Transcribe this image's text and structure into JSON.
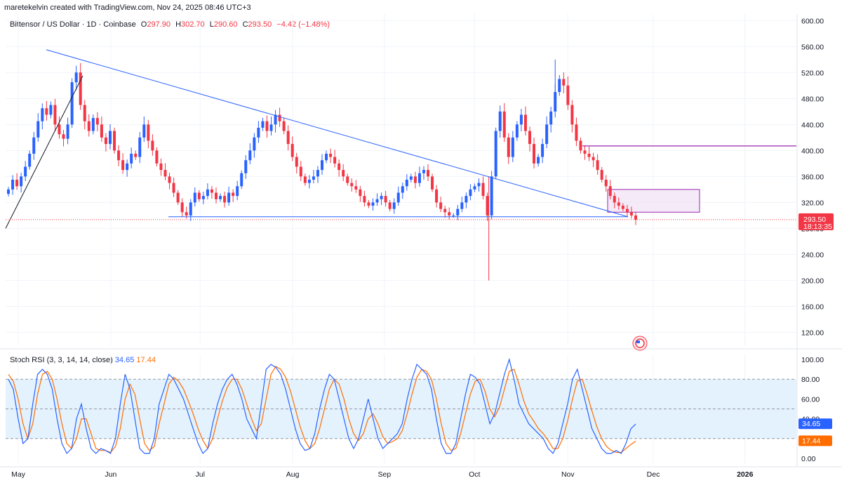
{
  "header": {
    "attribution": "maretekelvin created with TradingView.com, Nov 24, 2025 08:46 UTC+3"
  },
  "legend": {
    "symbol": "Bittensor / US Dollar · 1D · Coinbase",
    "open_label": "O",
    "open": "297.90",
    "high_label": "H",
    "high": "302.70",
    "low_label": "L",
    "low": "290.60",
    "close_label": "C",
    "close": "293.50",
    "change": "−4.42 (−1.48%)"
  },
  "price_badge": {
    "price": "293.50",
    "countdown": "18:13:35"
  },
  "rsi_legend": {
    "title": "Stoch RSI (3, 3, 14, 14, close)",
    "k_value": "34.65",
    "d_value": "17.44"
  },
  "colors": {
    "up": "#2962ff",
    "down": "#f23645",
    "trendline": "#2962ff",
    "resistance": "#9c27b0",
    "zone_fill": "#f3e5f5",
    "rsi_k": "#2962ff",
    "rsi_d": "#ff6d00",
    "rsi_band": "#e3f2fd"
  },
  "chart_data": [
    {
      "type": "candlestick",
      "title": "Bittensor / US Dollar · 1D · Coinbase",
      "y_axis_side": "right",
      "ylim": [
        100,
        610
      ],
      "y_ticks": [
        120,
        160,
        200,
        240,
        280,
        320,
        360,
        400,
        440,
        480,
        520,
        560,
        600
      ],
      "y_tick_labels": [
        "120.00",
        "160.00",
        "200.00",
        "240.00",
        "280.00",
        "320.00",
        "360.00",
        "400.00",
        "440.00",
        "480.00",
        "520.00",
        "560.00",
        "600.00"
      ],
      "x_ticks": [
        "May",
        "Jun",
        "Jul",
        "Aug",
        "Sep",
        "Oct",
        "Nov",
        "Dec",
        "2026"
      ],
      "close_series": [
        340,
        355,
        345,
        360,
        375,
        395,
        420,
        445,
        465,
        455,
        470,
        440,
        425,
        418,
        440,
        505,
        520,
        470,
        445,
        430,
        450,
        440,
        420,
        410,
        430,
        400,
        385,
        370,
        380,
        395,
        390,
        420,
        440,
        415,
        400,
        380,
        370,
        360,
        350,
        335,
        320,
        305,
        300,
        320,
        335,
        325,
        330,
        340,
        335,
        325,
        330,
        320,
        335,
        330,
        345,
        365,
        385,
        400,
        420,
        435,
        445,
        430,
        440,
        455,
        445,
        430,
        410,
        390,
        375,
        360,
        350,
        355,
        360,
        370,
        385,
        395,
        390,
        380,
        370,
        360,
        350,
        345,
        340,
        330,
        320,
        315,
        320,
        325,
        330,
        320,
        310,
        320,
        335,
        345,
        355,
        360,
        350,
        365,
        370,
        360,
        340,
        320,
        310,
        305,
        300,
        300,
        310,
        320,
        330,
        340,
        345,
        350,
        330,
        300,
        360,
        430,
        460,
        420,
        390,
        420,
        440,
        455,
        430,
        410,
        380,
        390,
        410,
        440,
        460,
        490,
        510,
        500,
        470,
        440,
        415,
        400,
        395,
        390,
        385,
        370,
        355,
        345,
        330,
        320,
        315,
        310,
        305,
        300,
        293.5
      ],
      "annotations": {
        "descending_trendline": {
          "start": 555,
          "end": 298
        },
        "support_line": 298,
        "resistance_line": 407,
        "supply_zone": [
          305,
          340
        ],
        "current_price": 293.5,
        "oct_wick_low": 200,
        "nov_high": 540
      }
    },
    {
      "type": "line",
      "title": "Stoch RSI (3, 3, 14, 14, close)",
      "ylim": [
        -5,
        105
      ],
      "y_ticks": [
        0,
        20,
        40,
        60,
        80,
        100
      ],
      "y_tick_labels": [
        "0.00",
        "20.00",
        "40.00",
        "60.00",
        "80.00",
        "100.00"
      ],
      "band": [
        20,
        80
      ],
      "series": [
        {
          "name": "K",
          "values": [
            80,
            70,
            40,
            15,
            20,
            55,
            85,
            90,
            85,
            70,
            40,
            15,
            5,
            10,
            40,
            55,
            30,
            10,
            5,
            10,
            8,
            5,
            20,
            55,
            85,
            70,
            40,
            10,
            5,
            5,
            20,
            55,
            70,
            85,
            80,
            70,
            60,
            45,
            30,
            15,
            5,
            10,
            35,
            55,
            70,
            80,
            85,
            75,
            60,
            40,
            30,
            20,
            55,
            90,
            95,
            92,
            85,
            70,
            50,
            30,
            15,
            8,
            10,
            25,
            50,
            70,
            85,
            80,
            60,
            40,
            20,
            10,
            20,
            40,
            60,
            40,
            20,
            10,
            15,
            20,
            25,
            35,
            60,
            80,
            95,
            90,
            85,
            70,
            40,
            15,
            5,
            5,
            15,
            40,
            65,
            85,
            82,
            75,
            55,
            35,
            45,
            65,
            85,
            100,
            80,
            55,
            45,
            35,
            30,
            25,
            20,
            10,
            5,
            15,
            35,
            55,
            80,
            90,
            70,
            50,
            30,
            20,
            10,
            5,
            5,
            8,
            5,
            15,
            30,
            34.65
          ]
        },
        {
          "name": "D",
          "values": [
            85,
            78,
            60,
            35,
            20,
            35,
            65,
            85,
            88,
            80,
            60,
            35,
            15,
            10,
            20,
            40,
            40,
            25,
            10,
            8,
            8,
            6,
            12,
            30,
            60,
            75,
            65,
            40,
            15,
            8,
            12,
            35,
            55,
            75,
            82,
            78,
            70,
            58,
            45,
            30,
            18,
            10,
            20,
            40,
            58,
            72,
            80,
            80,
            70,
            55,
            40,
            28,
            35,
            60,
            85,
            93,
            90,
            82,
            68,
            50,
            32,
            18,
            10,
            15,
            30,
            50,
            70,
            80,
            75,
            60,
            40,
            25,
            18,
            25,
            40,
            45,
            35,
            22,
            15,
            17,
            20,
            28,
            45,
            65,
            82,
            90,
            88,
            80,
            60,
            35,
            15,
            8,
            10,
            25,
            45,
            65,
            78,
            80,
            68,
            50,
            42,
            52,
            70,
            88,
            90,
            75,
            58,
            45,
            38,
            30,
            25,
            18,
            10,
            10,
            20,
            38,
            60,
            78,
            80,
            65,
            48,
            32,
            20,
            12,
            8,
            6,
            6,
            10,
            14,
            17.44
          ]
        }
      ]
    }
  ]
}
